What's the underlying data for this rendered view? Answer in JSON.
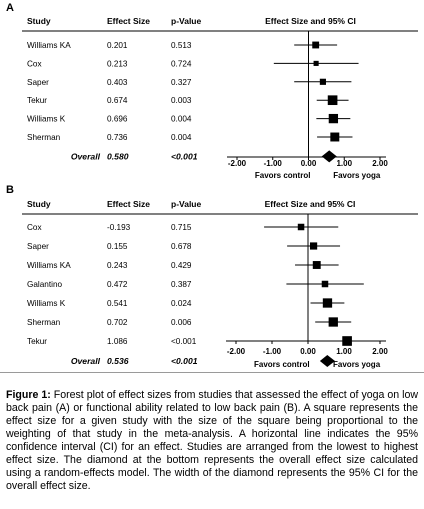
{
  "figure": {
    "caption_label": "Figure 1:",
    "caption_text": "Forest plot of effect sizes from studies that assessed the effect of yoga on low back pain (A) or functional ability related to low back pain (B). A square represents the effect size for a given study with the size of the square being proportional to the weighting of that study in the meta-analysis. A horizontal line indicates the 95% confidence interval (CI) for an effect. Studies are arranged from the lowest to highest effect size. The diamond at the bottom represents the overall effect size calculated using a random-effects model. The width of the diamond represents the 95% CI for the overall effect size."
  },
  "colors": {
    "ink": "#000000",
    "rule": "#9a9a9a"
  },
  "chart_data": [
    {
      "type": "forest",
      "panel": "A",
      "headers": {
        "study": "Study",
        "effect": "Effect Size",
        "p": "p-Value",
        "plot": "Effect Size and 95% CI"
      },
      "xlim": [
        -2,
        2
      ],
      "ticks": [
        "-2.00",
        "-1.00",
        "0.00",
        "1.00",
        "2.00"
      ],
      "tick_values": [
        -2,
        -1,
        0,
        1,
        2
      ],
      "favors_left": "Favors control",
      "favors_right": "Favors yoga",
      "studies": [
        {
          "name": "Williams KA",
          "effect": "0.201",
          "p": "0.513",
          "value": 0.201,
          "ci": [
            -0.4,
            0.8
          ],
          "weight": 0.55
        },
        {
          "name": "Cox",
          "effect": "0.213",
          "p": "0.724",
          "value": 0.213,
          "ci": [
            -0.97,
            1.4
          ],
          "weight": 0.3
        },
        {
          "name": "Saper",
          "effect": "0.403",
          "p": "0.327",
          "value": 0.403,
          "ci": [
            -0.4,
            1.2
          ],
          "weight": 0.45
        },
        {
          "name": "Tekur",
          "effect": "0.674",
          "p": "0.003",
          "value": 0.674,
          "ci": [
            0.23,
            1.12
          ],
          "weight": 0.95
        },
        {
          "name": "Williams K",
          "effect": "0.696",
          "p": "0.004",
          "value": 0.696,
          "ci": [
            0.22,
            1.17
          ],
          "weight": 0.9
        },
        {
          "name": "Sherman",
          "effect": "0.736",
          "p": "0.004",
          "value": 0.736,
          "ci": [
            0.24,
            1.23
          ],
          "weight": 0.85
        }
      ],
      "overall": {
        "name": "Overall",
        "effect": "0.580",
        "p": "<0.001",
        "value": 0.58,
        "ci": [
          0.37,
          0.79
        ]
      }
    },
    {
      "type": "forest",
      "panel": "B",
      "headers": {
        "study": "Study",
        "effect": "Effect Size",
        "p": "p-Value",
        "plot": "Effect Size and 95% CI"
      },
      "xlim": [
        -2,
        2
      ],
      "ticks": [
        "-2.00",
        "-1.00",
        "0.00",
        "1.00",
        "2.00"
      ],
      "tick_values": [
        -2,
        -1,
        0,
        1,
        2
      ],
      "favors_left": "Favors control",
      "favors_right": "Favors yoga",
      "studies": [
        {
          "name": "Cox",
          "effect": "-0.193",
          "p": "0.715",
          "value": -0.193,
          "ci": [
            -1.22,
            0.84
          ],
          "weight": 0.5
        },
        {
          "name": "Saper",
          "effect": "0.155",
          "p": "0.678",
          "value": 0.155,
          "ci": [
            -0.58,
            0.89
          ],
          "weight": 0.6
        },
        {
          "name": "Williams KA",
          "effect": "0.243",
          "p": "0.429",
          "value": 0.243,
          "ci": [
            -0.36,
            0.85
          ],
          "weight": 0.7
        },
        {
          "name": "Galantino",
          "effect": "0.472",
          "p": "0.387",
          "value": 0.472,
          "ci": [
            -0.6,
            1.55
          ],
          "weight": 0.5
        },
        {
          "name": "Williams K",
          "effect": "0.541",
          "p": "0.024",
          "value": 0.541,
          "ci": [
            0.07,
            1.01
          ],
          "weight": 0.9
        },
        {
          "name": "Sherman",
          "effect": "0.702",
          "p": "0.006",
          "value": 0.702,
          "ci": [
            0.2,
            1.2
          ],
          "weight": 0.9
        },
        {
          "name": "Tekur",
          "effect": "1.086",
          "p": "<0.001",
          "value": 1.086,
          "ci": [
            0.6,
            1.57
          ],
          "weight": 0.95
        }
      ],
      "overall": {
        "name": "Overall",
        "effect": "0.536",
        "p": "<0.001",
        "value": 0.536,
        "ci": [
          0.33,
          0.75
        ]
      }
    }
  ]
}
